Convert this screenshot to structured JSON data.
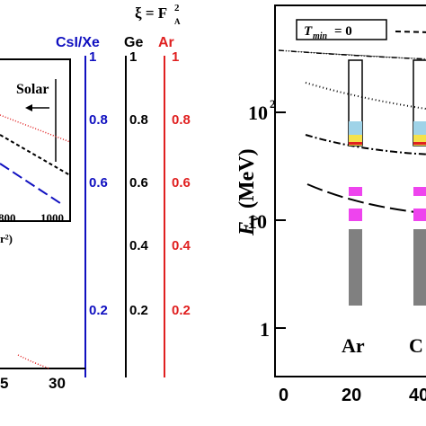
{
  "left_panel": {
    "header": {
      "xi": "ξ = F",
      "sup": "2",
      "sub": "A"
    },
    "axis_titles": {
      "csi": "CsI/Xe",
      "ge": "Ge",
      "ar": "Ar"
    },
    "csi_ticks": [
      "1",
      "0.8",
      "0.6",
      "0.2"
    ],
    "ge_ticks": [
      "1",
      "0.8",
      "0.6",
      "0.4",
      "0.2"
    ],
    "ar_ticks": [
      "1",
      "0.8",
      "0.6",
      "0.4",
      "0.2"
    ],
    "inset": {
      "label": "Solar",
      "ticks": [
        "800",
        "1000"
      ],
      "axis_fragment": "r²)"
    },
    "x_ticks": [
      "5",
      "30"
    ]
  },
  "right_panel": {
    "box_label": "T",
    "box_sub": "min",
    "box_eq": "= 0",
    "y_label": "E",
    "y_sub": "ν",
    "y_unit": "(MeV)",
    "y_ticks": [
      "10",
      "10",
      "1"
    ],
    "y_sup": "2",
    "x_ticks": [
      "0",
      "20",
      "40"
    ],
    "targets": [
      "Ar",
      "C"
    ]
  }
}
